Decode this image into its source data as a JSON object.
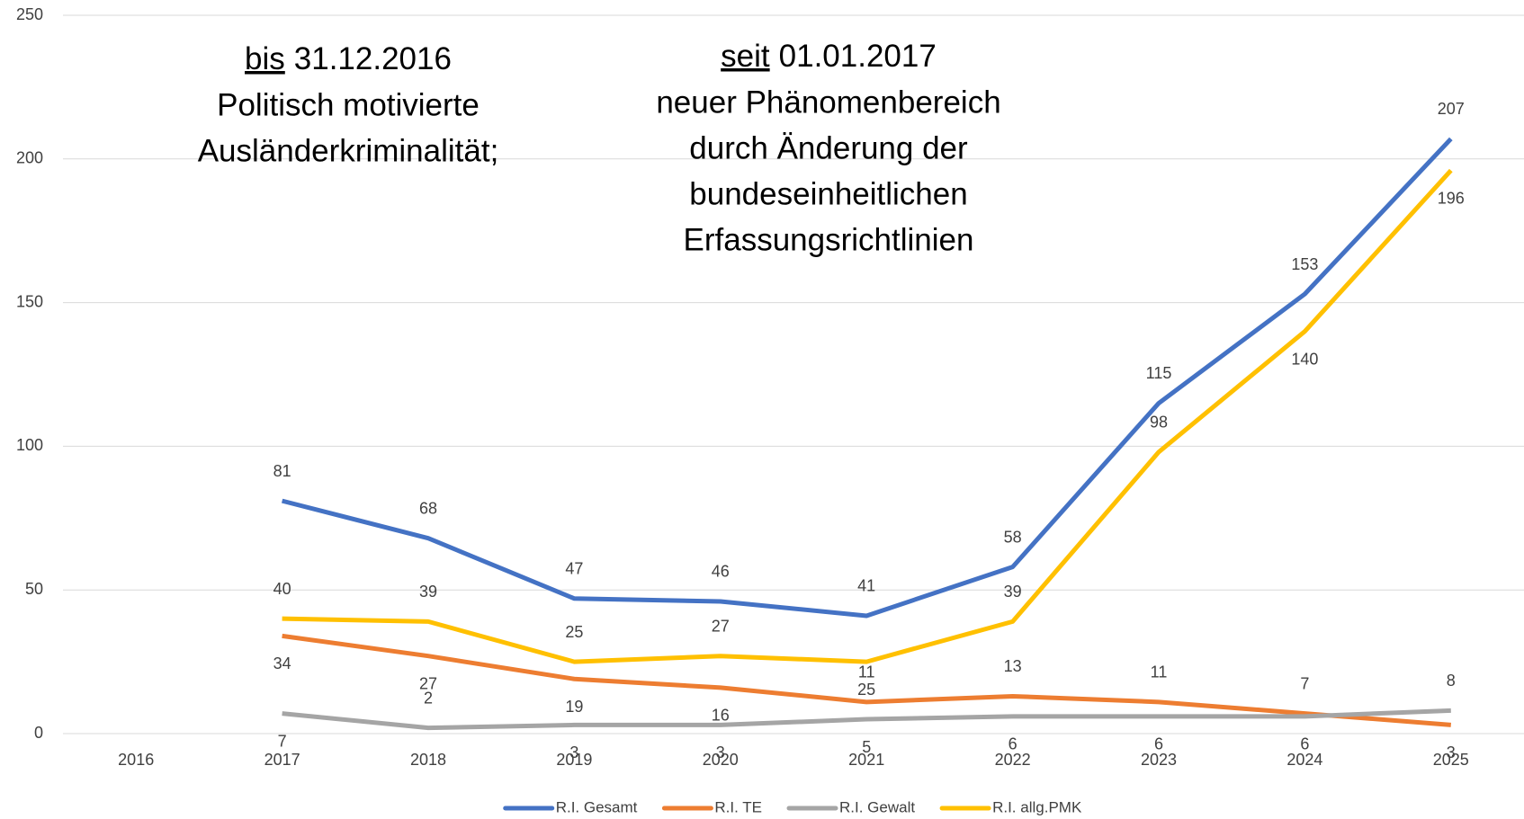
{
  "chart_data": {
    "type": "line",
    "categories": [
      "2016",
      "2017",
      "2018",
      "2019",
      "2020",
      "2021",
      "2022",
      "2023",
      "2024",
      "2025"
    ],
    "series": [
      {
        "name": "R.I. Gesamt",
        "color": "#4472c4",
        "values": [
          null,
          81,
          68,
          47,
          46,
          41,
          58,
          115,
          153,
          207
        ]
      },
      {
        "name": "R.I. TE",
        "color": "#ed7d31",
        "values": [
          null,
          34,
          27,
          19,
          16,
          11,
          13,
          11,
          7,
          3
        ]
      },
      {
        "name": "R.I. Gewalt",
        "color": "#a5a5a5",
        "values": [
          null,
          7,
          2,
          3,
          3,
          5,
          6,
          6,
          6,
          8
        ]
      },
      {
        "name": "R.I. allg.PMK",
        "color": "#ffc000",
        "values": [
          null,
          40,
          39,
          25,
          27,
          25,
          39,
          98,
          140,
          196
        ]
      }
    ],
    "ylim": [
      0,
      250
    ],
    "yticks": [
      0,
      50,
      100,
      150,
      200,
      250
    ],
    "grid": true,
    "legend": "bottom",
    "annotations": [
      {
        "underlined": "bis",
        "text": "31.12.2016",
        "lines": [
          "Politisch motivierte",
          "Ausländerkriminalität;"
        ]
      },
      {
        "underlined": "seit",
        "text": "01.01.2017",
        "lines": [
          "neuer Phänomenbereich",
          "durch Änderung der",
          "bundeseinheitlichen",
          "Erfassungsrichtlinien"
        ]
      }
    ]
  }
}
